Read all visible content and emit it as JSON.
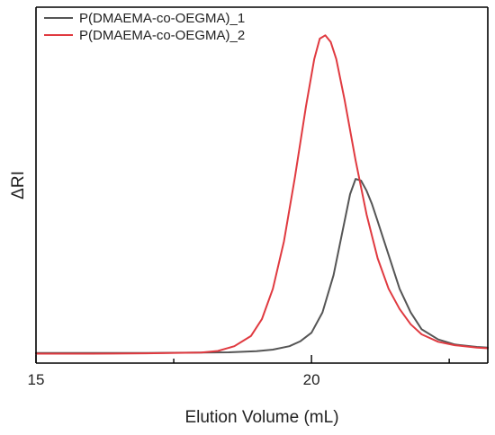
{
  "chart_data": {
    "type": "line",
    "title": "",
    "xlabel": "Elution Volume (mL)",
    "ylabel": "ΔRI",
    "xlim": [
      15,
      23.2
    ],
    "ylim": [
      0,
      1.0
    ],
    "x_ticks_major": [
      15,
      20
    ],
    "x_tick_labels": [
      "15",
      "20"
    ],
    "x_ticks_minor_step": 2.5,
    "y_ticks": [],
    "grid": false,
    "legend_position": "top-left",
    "series": [
      {
        "name": "P(DMAEMA-co-OEGMA)_1",
        "color": "#555555",
        "x": [
          15,
          16,
          17,
          18,
          18.5,
          19,
          19.3,
          19.6,
          19.8,
          20.0,
          20.2,
          20.4,
          20.55,
          20.7,
          20.8,
          20.9,
          21.0,
          21.1,
          21.2,
          21.4,
          21.6,
          21.8,
          22.0,
          22.3,
          22.6,
          23.0,
          23.2
        ],
        "values": [
          0.03,
          0.03,
          0.03,
          0.031,
          0.032,
          0.035,
          0.04,
          0.05,
          0.065,
          0.09,
          0.15,
          0.26,
          0.38,
          0.5,
          0.545,
          0.54,
          0.51,
          0.47,
          0.42,
          0.32,
          0.22,
          0.15,
          0.1,
          0.07,
          0.055,
          0.048,
          0.046
        ]
      },
      {
        "name": "P(DMAEMA-co-OEGMA)_2",
        "color": "#e03a40",
        "x": [
          15,
          16,
          17,
          18,
          18.3,
          18.6,
          18.9,
          19.1,
          19.3,
          19.5,
          19.7,
          19.9,
          20.05,
          20.15,
          20.25,
          20.35,
          20.45,
          20.6,
          20.8,
          21.0,
          21.2,
          21.4,
          21.6,
          21.8,
          22.0,
          22.3,
          22.6,
          23.0,
          23.2
        ],
        "values": [
          0.028,
          0.028,
          0.029,
          0.031,
          0.036,
          0.05,
          0.08,
          0.13,
          0.22,
          0.36,
          0.55,
          0.76,
          0.9,
          0.96,
          0.97,
          0.95,
          0.9,
          0.78,
          0.6,
          0.44,
          0.31,
          0.22,
          0.16,
          0.115,
          0.085,
          0.063,
          0.053,
          0.046,
          0.044
        ]
      }
    ]
  }
}
